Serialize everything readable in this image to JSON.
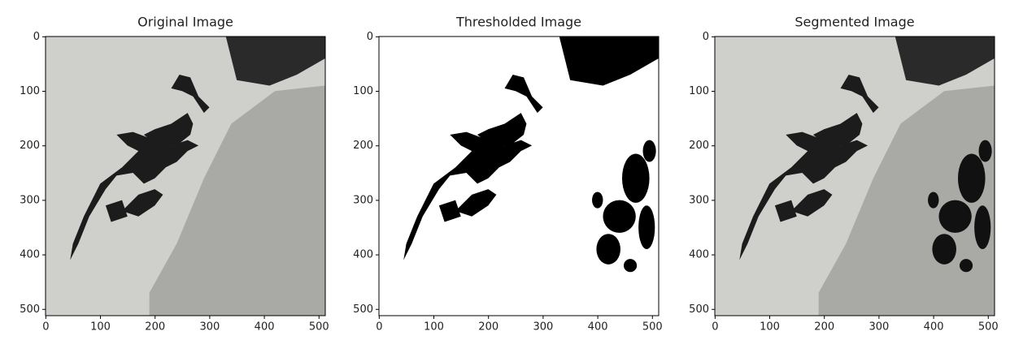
{
  "chart_data": [
    {
      "type": "image",
      "title": "Original Image",
      "variant": "original",
      "xlim": [
        -0.5,
        511.5
      ],
      "ylim": [
        511.5,
        -0.5
      ],
      "xticks": [
        0,
        100,
        200,
        300,
        400,
        500
      ],
      "yticks": [
        0,
        100,
        200,
        300,
        400,
        500
      ]
    },
    {
      "type": "image",
      "title": "Thresholded Image",
      "variant": "thresholded",
      "xlim": [
        -0.5,
        511.5
      ],
      "ylim": [
        511.5,
        -0.5
      ],
      "xticks": [
        0,
        100,
        200,
        300,
        400,
        500
      ],
      "yticks": [
        0,
        100,
        200,
        300,
        400,
        500
      ]
    },
    {
      "type": "image",
      "title": "Segmented Image",
      "variant": "segmented",
      "xlim": [
        -0.5,
        511.5
      ],
      "ylim": [
        511.5,
        -0.5
      ],
      "xticks": [
        0,
        100,
        200,
        300,
        400,
        500
      ],
      "yticks": [
        0,
        100,
        200,
        300,
        400,
        500
      ]
    }
  ]
}
